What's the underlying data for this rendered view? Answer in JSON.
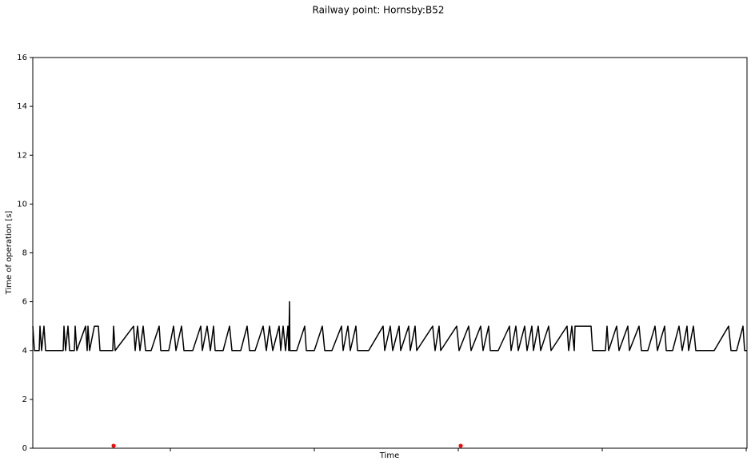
{
  "chart_data": {
    "type": "line",
    "title": "Railway point: Hornsby:B52",
    "xlabel": "Time",
    "ylabel": "Time of operation [s]",
    "xlim": [
      0,
      893
    ],
    "xticks": [
      172,
      352,
      532,
      712,
      892
    ],
    "ylim": [
      0,
      16
    ],
    "yticks": [
      0,
      2,
      4,
      6,
      8,
      10,
      12,
      14,
      16
    ],
    "grid": false,
    "series": [
      {
        "color": "#000000",
        "x": [
          0,
          2,
          8,
          9,
          11,
          14,
          16,
          38,
          39,
          41,
          44,
          46,
          52,
          53,
          55,
          66,
          68,
          69,
          71,
          77,
          82,
          84,
          100,
          101,
          103,
          126,
          128,
          131,
          134,
          138,
          141,
          148,
          158,
          160,
          170,
          176,
          179,
          186,
          189,
          200,
          210,
          212,
          218,
          222,
          226,
          228,
          238,
          246,
          249,
          260,
          268,
          271,
          278,
          288,
          292,
          296,
          300,
          308,
          310,
          313,
          316,
          319,
          320,
          321,
          321.5,
          330,
          340,
          342,
          352,
          362,
          365,
          374,
          386,
          388,
          394,
          397,
          404,
          406,
          420,
          438,
          440,
          447,
          450,
          458,
          460,
          470,
          472,
          478,
          480,
          500,
          503,
          508,
          510,
          530,
          533,
          545,
          548,
          560,
          563,
          570,
          572,
          582,
          596,
          598,
          604,
          607,
          615,
          618,
          624,
          626,
          632,
          635,
          645,
          648,
          668,
          670,
          674,
          677,
          678,
          698,
          700,
          716,
          718,
          720,
          730,
          733,
          744,
          746,
          758,
          761,
          769,
          778,
          781,
          790,
          792,
          800,
          808,
          812,
          818,
          820,
          826,
          829,
          852,
          870,
          873,
          880,
          888,
          890,
          893
        ],
        "values": [
          5,
          4,
          4,
          5,
          4,
          5,
          4,
          4,
          5,
          4,
          5,
          4,
          4,
          5,
          4,
          5,
          4,
          5,
          4,
          5,
          5,
          4,
          4,
          5,
          4,
          5,
          4,
          5,
          4,
          5,
          4,
          4,
          5,
          4,
          4,
          5,
          4,
          5,
          4,
          4,
          5,
          4,
          5,
          4,
          5,
          4,
          4,
          5,
          4,
          4,
          5,
          4,
          4,
          5,
          4,
          5,
          4,
          5,
          4,
          5,
          4,
          5,
          4,
          6,
          4,
          4,
          5,
          4,
          4,
          5,
          4,
          4,
          5,
          4,
          5,
          4,
          5,
          4,
          4,
          5,
          4,
          5,
          4,
          5,
          4,
          5,
          4,
          5,
          4,
          5,
          4,
          5,
          4,
          5,
          4,
          5,
          4,
          5,
          4,
          5,
          4,
          4,
          5,
          4,
          5,
          4,
          5,
          4,
          5,
          4,
          5,
          4,
          5,
          4,
          5,
          4,
          5,
          4,
          5,
          5,
          4,
          4,
          5,
          4,
          5,
          4,
          5,
          4,
          5,
          4,
          4,
          5,
          4,
          5,
          4,
          4,
          5,
          4,
          5,
          4,
          5,
          4,
          4,
          5,
          4,
          4,
          5,
          4,
          4
        ]
      },
      {
        "color": "#ff0000",
        "marker": "dot",
        "x": [
          101,
          535
        ],
        "values": [
          0.1,
          0.1
        ]
      }
    ]
  }
}
